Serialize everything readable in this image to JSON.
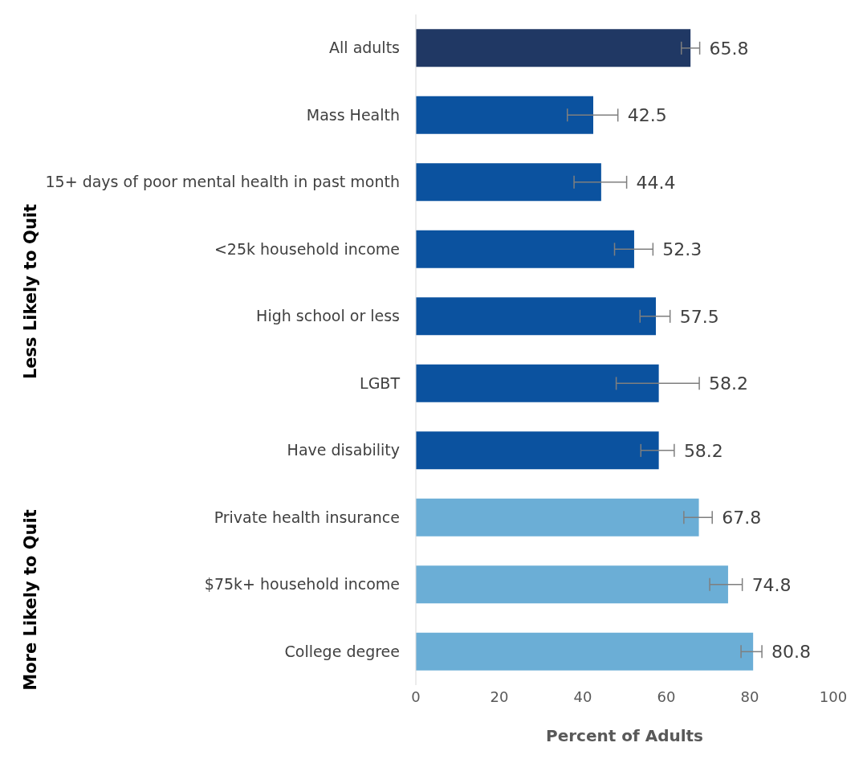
{
  "chart_data": {
    "type": "bar",
    "orientation": "horizontal",
    "xlabel": "Percent of Adults",
    "categories": [
      "All adults",
      "Mass Health",
      "15+ days of poor mental health in past month",
      "<25k household income",
      "High school or less",
      "LGBT",
      "Have disability",
      "Private health insurance",
      "$75k+ household income",
      "College degree"
    ],
    "values": [
      65.8,
      42.5,
      44.4,
      52.3,
      57.5,
      58.2,
      58.2,
      67.8,
      74.8,
      80.8
    ],
    "errors": [
      [
        63.6,
        68.0
      ],
      [
        36.3,
        48.4
      ],
      [
        37.9,
        50.5
      ],
      [
        47.6,
        56.8
      ],
      [
        53.7,
        60.9
      ],
      [
        48.0,
        67.9
      ],
      [
        53.9,
        61.9
      ],
      [
        64.2,
        71.0
      ],
      [
        70.4,
        78.2
      ],
      [
        77.9,
        82.9
      ]
    ],
    "colors": [
      "#203864",
      "#0b529f",
      "#0b529f",
      "#0b529f",
      "#0b529f",
      "#0b529f",
      "#0b529f",
      "#6baed6",
      "#6baed6",
      "#6baed6"
    ],
    "data_labels": true,
    "xlim": [
      0,
      100
    ],
    "xticks": [
      0,
      20,
      40,
      60,
      80,
      100
    ],
    "grid": false,
    "legend": false,
    "annotations": [
      "Less Likely to Quit",
      "More Likely to Quit"
    ]
  }
}
